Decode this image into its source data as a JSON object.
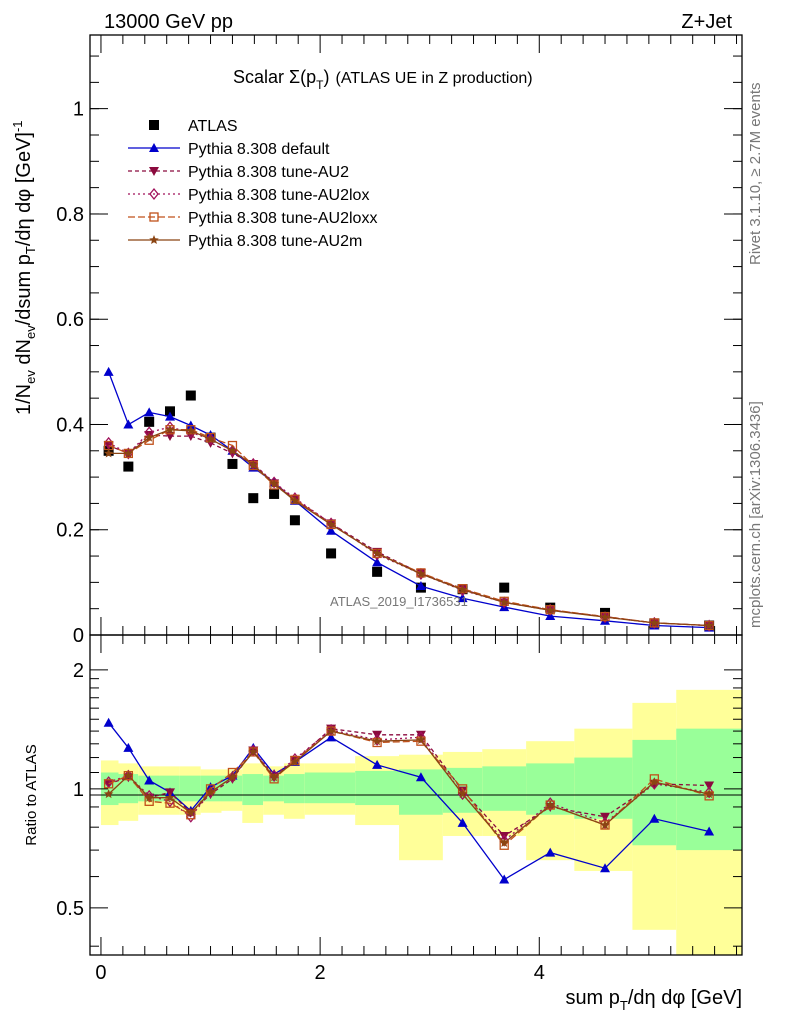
{
  "header": {
    "energy_label": "13000 GeV pp",
    "process_label": "Z+Jet"
  },
  "plot_title": "Scalar Σ(p_T) (ATLAS UE in Z production)",
  "side_labels": {
    "rivet": "Rivet 3.1.10, ≥ 2.7M events",
    "mcplots": "mcplots.cern.ch [arXiv:1306.3436]"
  },
  "watermark": "ATLAS_2019_I1736531",
  "axis_labels": {
    "main_y": "1/N_ev dN_ev/dsum p_T/dη dφ [GeV]^-1",
    "ratio_y": "Ratio to ATLAS",
    "x": "sum p_T/dη dφ [GeV]"
  },
  "colors": {
    "atlas": "#000000",
    "default": "#0000cc",
    "au2": "#8b0a3e",
    "au2lox": "#a0105a",
    "au2loxx": "#c0501a",
    "au2m": "#8b4513",
    "band_inner": "#99ff99",
    "band_outer": "#ffff99"
  },
  "chart_data": [
    {
      "type": "scatter",
      "panel": "main",
      "xlim": [
        -0.1,
        5.85
      ],
      "ylim": [
        0,
        1.14
      ],
      "y_ticks": [
        0,
        0.2,
        0.4,
        0.6,
        0.8,
        1
      ],
      "y_tick_labels": [
        "0",
        "0.2",
        "0.4",
        "0.6",
        "0.8",
        "1"
      ],
      "x_ticks": [
        0,
        2,
        4
      ],
      "x": [
        0.07,
        0.25,
        0.44,
        0.63,
        0.82,
        1.0,
        1.2,
        1.39,
        1.58,
        1.77,
        2.1,
        2.52,
        2.92,
        3.3,
        3.68,
        4.1,
        4.6,
        5.05,
        5.55
      ],
      "legend_position": "top-left",
      "series": [
        {
          "name": "ATLAS",
          "key": "atlas",
          "marker": "square",
          "dash": "none",
          "values": [
            0.35,
            0.32,
            0.405,
            0.425,
            0.455,
            0.375,
            0.325,
            0.26,
            0.268,
            0.218,
            0.155,
            0.12,
            0.09,
            0.087,
            0.09,
            0.052,
            0.042,
            0.022,
            0.018
          ]
        },
        {
          "name": "Pythia 8.308 default",
          "key": "default",
          "marker": "triangle-up",
          "dash": "none",
          "values": [
            0.5,
            0.4,
            0.423,
            0.415,
            0.398,
            0.38,
            0.35,
            0.318,
            0.29,
            0.255,
            0.198,
            0.138,
            0.093,
            0.07,
            0.053,
            0.036,
            0.027,
            0.018,
            0.014
          ]
        },
        {
          "name": "Pythia 8.308 tune-AU2",
          "key": "au2",
          "marker": "triangle-down",
          "dash": "4,3",
          "values": [
            0.36,
            0.345,
            0.38,
            0.378,
            0.378,
            0.365,
            0.345,
            0.325,
            0.288,
            0.258,
            0.212,
            0.158,
            0.117,
            0.087,
            0.062,
            0.047,
            0.035,
            0.023,
            0.018
          ]
        },
        {
          "name": "Pythia 8.308 tune-AU2lox",
          "key": "au2lox",
          "marker": "diamond-open",
          "dash": "2,3",
          "values": [
            0.365,
            0.345,
            0.385,
            0.395,
            0.385,
            0.372,
            0.35,
            0.325,
            0.29,
            0.26,
            0.212,
            0.153,
            0.116,
            0.085,
            0.062,
            0.048,
            0.034,
            0.023,
            0.018
          ]
        },
        {
          "name": "Pythia 8.308 tune-AU2loxx",
          "key": "au2loxx",
          "marker": "square-open",
          "dash": "7,3",
          "values": [
            0.36,
            0.345,
            0.37,
            0.39,
            0.39,
            0.375,
            0.36,
            0.322,
            0.285,
            0.258,
            0.21,
            0.155,
            0.118,
            0.088,
            0.064,
            0.048,
            0.035,
            0.023,
            0.018
          ]
        },
        {
          "name": "Pythia 8.308 tune-AU2m",
          "key": "au2m",
          "marker": "star",
          "dash": "none",
          "values": [
            0.345,
            0.345,
            0.375,
            0.39,
            0.388,
            0.372,
            0.35,
            0.323,
            0.287,
            0.255,
            0.21,
            0.155,
            0.116,
            0.086,
            0.062,
            0.047,
            0.034,
            0.023,
            0.018
          ]
        }
      ]
    },
    {
      "type": "scatter",
      "panel": "ratio",
      "log_scale_y": true,
      "xlim": [
        -0.1,
        5.85
      ],
      "ylim": [
        0.38,
        2.45
      ],
      "y_ticks": [
        0.5,
        1,
        2
      ],
      "y_tick_labels": [
        "0.5",
        "1",
        "2"
      ],
      "x_ticks": [
        0,
        2,
        4
      ],
      "x_tick_labels": [
        "0",
        "2",
        "4"
      ],
      "x": [
        0.07,
        0.25,
        0.44,
        0.63,
        0.82,
        1.0,
        1.2,
        1.39,
        1.58,
        1.77,
        2.1,
        2.52,
        2.92,
        3.3,
        3.68,
        4.1,
        4.6,
        5.05,
        5.55
      ],
      "bands": {
        "bin_edges": [
          0.0,
          0.16,
          0.34,
          0.53,
          0.72,
          0.91,
          1.1,
          1.29,
          1.48,
          1.67,
          1.86,
          2.32,
          2.72,
          3.12,
          3.48,
          3.88,
          4.32,
          4.85,
          5.25,
          5.85
        ],
        "outer_low": [
          0.81,
          0.83,
          0.86,
          0.86,
          0.86,
          0.87,
          0.88,
          0.82,
          0.86,
          0.84,
          0.86,
          0.81,
          0.66,
          0.76,
          0.76,
          0.66,
          0.62,
          0.44,
          0.35
        ],
        "outer_high": [
          1.18,
          1.16,
          1.14,
          1.14,
          1.14,
          1.12,
          1.12,
          1.16,
          1.14,
          1.16,
          1.16,
          1.21,
          1.22,
          1.24,
          1.26,
          1.32,
          1.42,
          1.65,
          1.78
        ],
        "inner_low": [
          0.91,
          0.92,
          0.93,
          0.93,
          0.93,
          0.93,
          0.93,
          0.91,
          0.93,
          0.92,
          0.92,
          0.91,
          0.86,
          0.87,
          0.88,
          0.86,
          0.84,
          0.72,
          0.7
        ],
        "inner_high": [
          1.1,
          1.09,
          1.08,
          1.08,
          1.08,
          1.08,
          1.08,
          1.09,
          1.08,
          1.09,
          1.1,
          1.11,
          1.12,
          1.13,
          1.14,
          1.16,
          1.2,
          1.33,
          1.42
        ]
      },
      "series": [
        {
          "key": "default",
          "marker": "triangle-up",
          "dash": "none",
          "values": [
            1.47,
            1.27,
            1.05,
            0.98,
            0.88,
            1.01,
            1.08,
            1.27,
            1.09,
            1.17,
            1.35,
            1.15,
            1.07,
            0.82,
            0.59,
            0.69,
            0.63,
            0.84,
            0.78
          ]
        },
        {
          "key": "au2",
          "marker": "triangle-down",
          "dash": "4,3",
          "values": [
            1.03,
            1.07,
            0.95,
            0.98,
            0.87,
            0.97,
            1.06,
            1.25,
            1.07,
            1.18,
            1.42,
            1.37,
            1.37,
            0.99,
            0.76,
            0.9,
            0.85,
            1.03,
            1.02
          ]
        },
        {
          "key": "au2lox",
          "marker": "diamond-open",
          "dash": "2,3",
          "values": [
            1.04,
            1.08,
            0.96,
            0.93,
            0.85,
            0.98,
            1.07,
            1.25,
            1.08,
            1.19,
            1.41,
            1.33,
            1.35,
            0.97,
            0.74,
            0.92,
            0.82,
            1.03,
            0.98
          ]
        },
        {
          "key": "au2loxx",
          "marker": "square-open",
          "dash": "7,3",
          "values": [
            1.03,
            1.08,
            0.93,
            0.92,
            0.86,
            1.0,
            1.1,
            1.24,
            1.06,
            1.18,
            1.4,
            1.31,
            1.32,
            1.0,
            0.72,
            0.91,
            0.81,
            1.06,
            0.96
          ]
        },
        {
          "key": "au2m",
          "marker": "star",
          "dash": "none",
          "values": [
            0.97,
            1.08,
            0.95,
            0.95,
            0.87,
            0.98,
            1.07,
            1.24,
            1.07,
            1.17,
            1.4,
            1.32,
            1.33,
            0.97,
            0.73,
            0.91,
            0.81,
            1.04,
            0.97
          ]
        }
      ]
    }
  ]
}
